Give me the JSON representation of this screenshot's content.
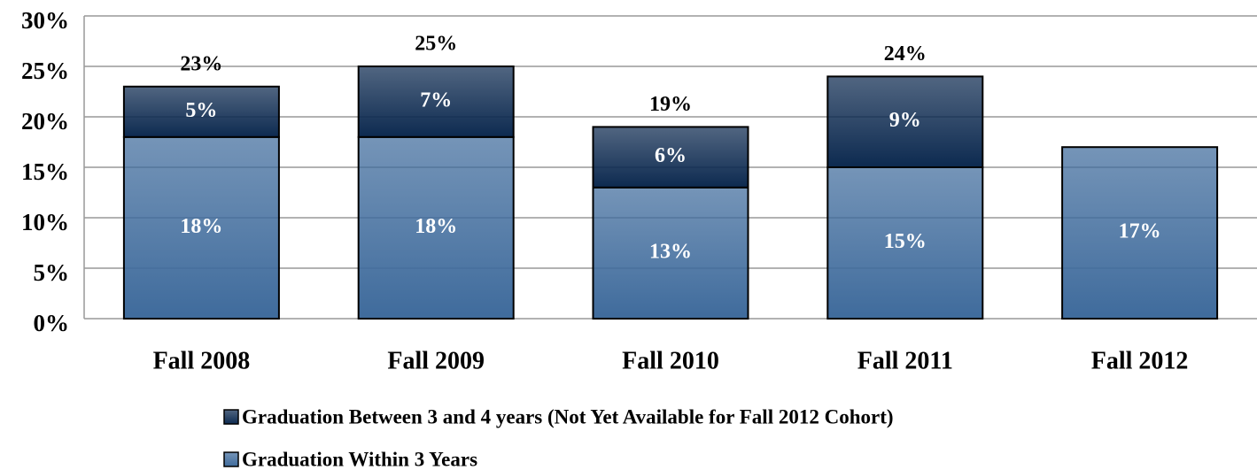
{
  "chart_data": {
    "type": "stacked_bar",
    "categories": [
      "Fall 2008",
      "Fall 2009",
      "Fall 2010",
      "Fall 2011",
      "Fall 2012"
    ],
    "series": [
      {
        "name": "Graduation Within 3 Years",
        "color": "#3f6b9c",
        "values": [
          18,
          18,
          13,
          15,
          17
        ],
        "value_labels": [
          "18%",
          "18%",
          "13%",
          "15%",
          "17%"
        ]
      },
      {
        "name": "Graduation Between 3 and 4 years (Not Yet Available for Fall 2012 Cohort)",
        "color": "#0d2a50",
        "values": [
          5,
          7,
          6,
          9,
          null
        ],
        "value_labels": [
          "5%",
          "7%",
          "6%",
          "9%",
          null
        ]
      }
    ],
    "totals": [
      23,
      25,
      19,
      24,
      null
    ],
    "total_labels": [
      "23%",
      "25%",
      "19%",
      "24%",
      null
    ],
    "ylim": [
      0,
      30
    ],
    "yticks": [
      {
        "value": 0,
        "label": "0%"
      },
      {
        "value": 5,
        "label": "5%"
      },
      {
        "value": 10,
        "label": "10%"
      },
      {
        "value": 15,
        "label": "15%"
      },
      {
        "value": 20,
        "label": "20%"
      },
      {
        "value": 25,
        "label": "25%"
      },
      {
        "value": 30,
        "label": "30%"
      }
    ],
    "grid": true,
    "legend": "bottom"
  }
}
